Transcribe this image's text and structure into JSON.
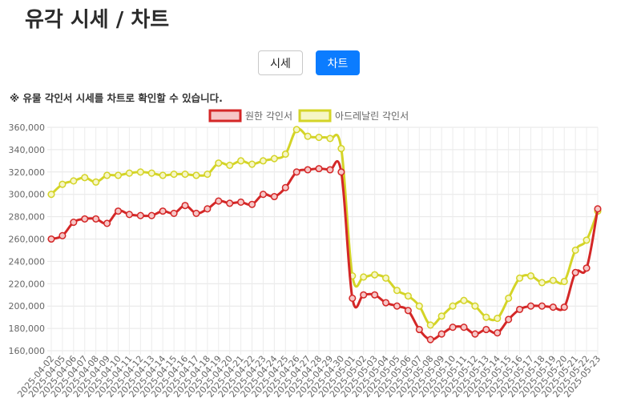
{
  "header": {
    "title": "유각 시세 / 차트"
  },
  "toolbar": {
    "price_label": "시세",
    "chart_label": "차트"
  },
  "note": "※ 유물 각인서 시세를 차트로 확인할 수 있습니다.",
  "chart_data": {
    "type": "line",
    "title": "",
    "xlabel": "",
    "ylabel": "",
    "ylim": [
      160000,
      360000
    ],
    "yticks": [
      160000,
      180000,
      200000,
      220000,
      240000,
      260000,
      280000,
      300000,
      320000,
      340000,
      360000
    ],
    "ytick_labels": [
      "160,000",
      "180,000",
      "200,000",
      "220,000",
      "240,000",
      "260,000",
      "280,000",
      "300,000",
      "320,000",
      "340,000",
      "360,000"
    ],
    "grid": true,
    "legend": "top-center",
    "categories": [
      "2025-04-02",
      "2025-04-05",
      "2025-04-06",
      "2025-04-07",
      "2025-04-08",
      "2025-04-09",
      "2025-04-10",
      "2025-04-11",
      "2025-04-12",
      "2025-04-13",
      "2025-04-14",
      "2025-04-15",
      "2025-04-16",
      "2025-04-17",
      "2025-04-18",
      "2025-04-19",
      "2025-04-20",
      "2025-04-21",
      "2025-04-22",
      "2025-04-23",
      "2025-04-24",
      "2025-04-25",
      "2025-04-26",
      "2025-04-27",
      "2025-04-28",
      "2025-04-29",
      "2025-04-30",
      "2025-05-01",
      "2025-05-02",
      "2025-05-03",
      "2025-05-04",
      "2025-05-05",
      "2025-05-06",
      "2025-05-07",
      "2025-05-08",
      "2025-05-09",
      "2025-05-10",
      "2025-05-11",
      "2025-05-12",
      "2025-05-13",
      "2025-05-14",
      "2025-05-15",
      "2025-05-16",
      "2025-05-17",
      "2025-05-18",
      "2025-05-19",
      "2025-05-20",
      "2025-05-21",
      "2025-05-22",
      "2025-05-23"
    ],
    "series": [
      {
        "name": "원한 각인서",
        "color": "#d42727",
        "fill": "#f6c6c6",
        "values": [
          260000,
          263000,
          275000,
          278000,
          278000,
          274000,
          285000,
          282000,
          281000,
          281000,
          285000,
          283000,
          290000,
          283000,
          287000,
          294000,
          292000,
          293000,
          291000,
          300000,
          298000,
          306000,
          320000,
          322000,
          323000,
          322000,
          320000,
          207000,
          210000,
          210000,
          203000,
          200000,
          196000,
          179000,
          170000,
          175000,
          181000,
          181000,
          175000,
          179000,
          176000,
          188000,
          197000,
          200000,
          200000,
          199000,
          199000,
          230000,
          234000,
          287000
        ]
      },
      {
        "name": "아드레날린 각인서",
        "color": "#d4d427",
        "fill": "#f6f6c6",
        "values": [
          300000,
          309000,
          312000,
          315000,
          311000,
          317000,
          317000,
          319000,
          320000,
          319000,
          317000,
          318000,
          318000,
          317000,
          318000,
          328000,
          326000,
          330000,
          327000,
          330000,
          332000,
          336000,
          358000,
          352000,
          351000,
          350000,
          341000,
          227000,
          226000,
          228000,
          225000,
          214000,
          209000,
          200000,
          183000,
          191000,
          200000,
          205000,
          200000,
          190000,
          189000,
          207000,
          225000,
          227000,
          221000,
          223000,
          222000,
          250000,
          259000,
          285000
        ]
      }
    ]
  }
}
